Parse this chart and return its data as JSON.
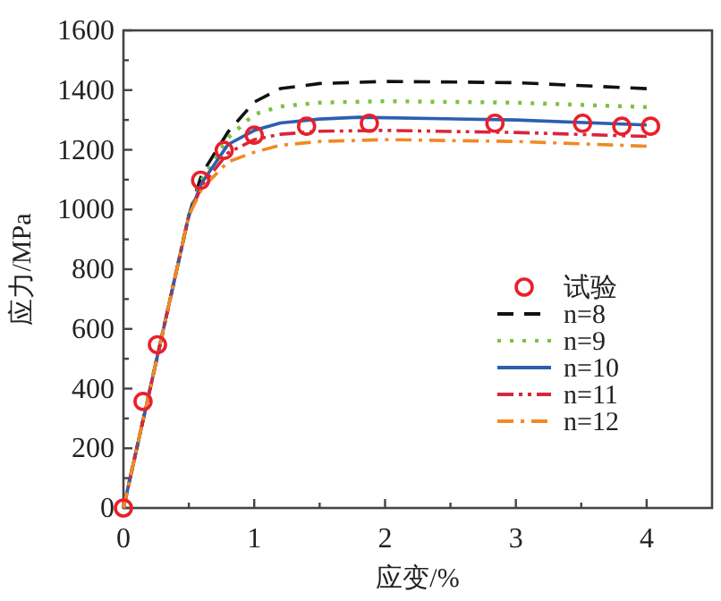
{
  "chart_data": {
    "type": "line",
    "xlabel": "应变/%",
    "ylabel": "应力/MPa",
    "xlim": [
      0,
      4.5
    ],
    "ylim": [
      0,
      1600
    ],
    "xticks": [
      0,
      {
        "value": 0.5,
        "label": null
      },
      1,
      {
        "value": 1.5,
        "label": null
      },
      2,
      {
        "value": 2.5,
        "label": null
      },
      3,
      {
        "value": 3.5,
        "label": null
      },
      4
    ],
    "yticks": [
      0,
      {
        "value": 100,
        "label": null
      },
      200,
      {
        "value": 300,
        "label": null
      },
      400,
      {
        "value": 500,
        "label": null
      },
      600,
      {
        "value": 700,
        "label": null
      },
      800,
      {
        "value": 900,
        "label": null
      },
      1000,
      {
        "value": 1100,
        "label": null
      },
      1200,
      {
        "value": 1300,
        "label": null
      },
      1400,
      {
        "value": 1500,
        "label": null
      },
      1600
    ],
    "grid": false,
    "legend": "right",
    "series": [
      {
        "name": "试验",
        "type": "scatter",
        "marker": "circle",
        "color": "#e8202a",
        "x": [
          0,
          0.15,
          0.26,
          0.59,
          0.77,
          1.0,
          1.4,
          1.88,
          2.84,
          3.51,
          3.81,
          4.03
        ],
        "values": [
          0,
          357,
          547,
          1098,
          1198,
          1249,
          1279,
          1289,
          1289,
          1289,
          1279,
          1279
        ]
      },
      {
        "name": "n=8",
        "type": "line",
        "line_style": "dashed",
        "color": "#111111",
        "x": [
          0,
          0.5,
          0.6,
          0.8,
          1.0,
          1.2,
          1.5,
          2,
          3,
          4
        ],
        "values": [
          0,
          980,
          1120,
          1260,
          1360,
          1405,
          1422,
          1429,
          1425,
          1405
        ]
      },
      {
        "name": "n=9",
        "type": "line",
        "line_style": "dotted",
        "color": "#7cc142",
        "x": [
          0,
          0.5,
          0.6,
          0.8,
          1.0,
          1.2,
          1.5,
          2,
          3,
          4
        ],
        "values": [
          0,
          980,
          1100,
          1240,
          1319,
          1345,
          1358,
          1363,
          1358,
          1343
        ]
      },
      {
        "name": "n=10",
        "type": "line",
        "line_style": "solid",
        "color": "#2d5fb0",
        "x": [
          0,
          0.5,
          0.6,
          0.8,
          1.0,
          1.2,
          1.5,
          1.8,
          3,
          4
        ],
        "values": [
          0,
          980,
          1090,
          1218,
          1265,
          1290,
          1303,
          1309,
          1300,
          1283
        ]
      },
      {
        "name": "n=11",
        "type": "line",
        "line_style": "dashdotdot",
        "color": "#d7263d",
        "x": [
          0,
          0.5,
          0.6,
          0.8,
          1.0,
          1.2,
          1.5,
          2,
          3,
          4
        ],
        "values": [
          0,
          980,
          1080,
          1190,
          1234,
          1252,
          1262,
          1265,
          1258,
          1245
        ]
      },
      {
        "name": "n=12",
        "type": "line",
        "line_style": "dashdot",
        "color": "#f08a24",
        "x": [
          0,
          0.5,
          0.6,
          0.8,
          1.0,
          1.2,
          1.5,
          2,
          3,
          4
        ],
        "values": [
          0,
          980,
          1070,
          1160,
          1192,
          1215,
          1228,
          1234,
          1228,
          1212
        ]
      }
    ]
  }
}
